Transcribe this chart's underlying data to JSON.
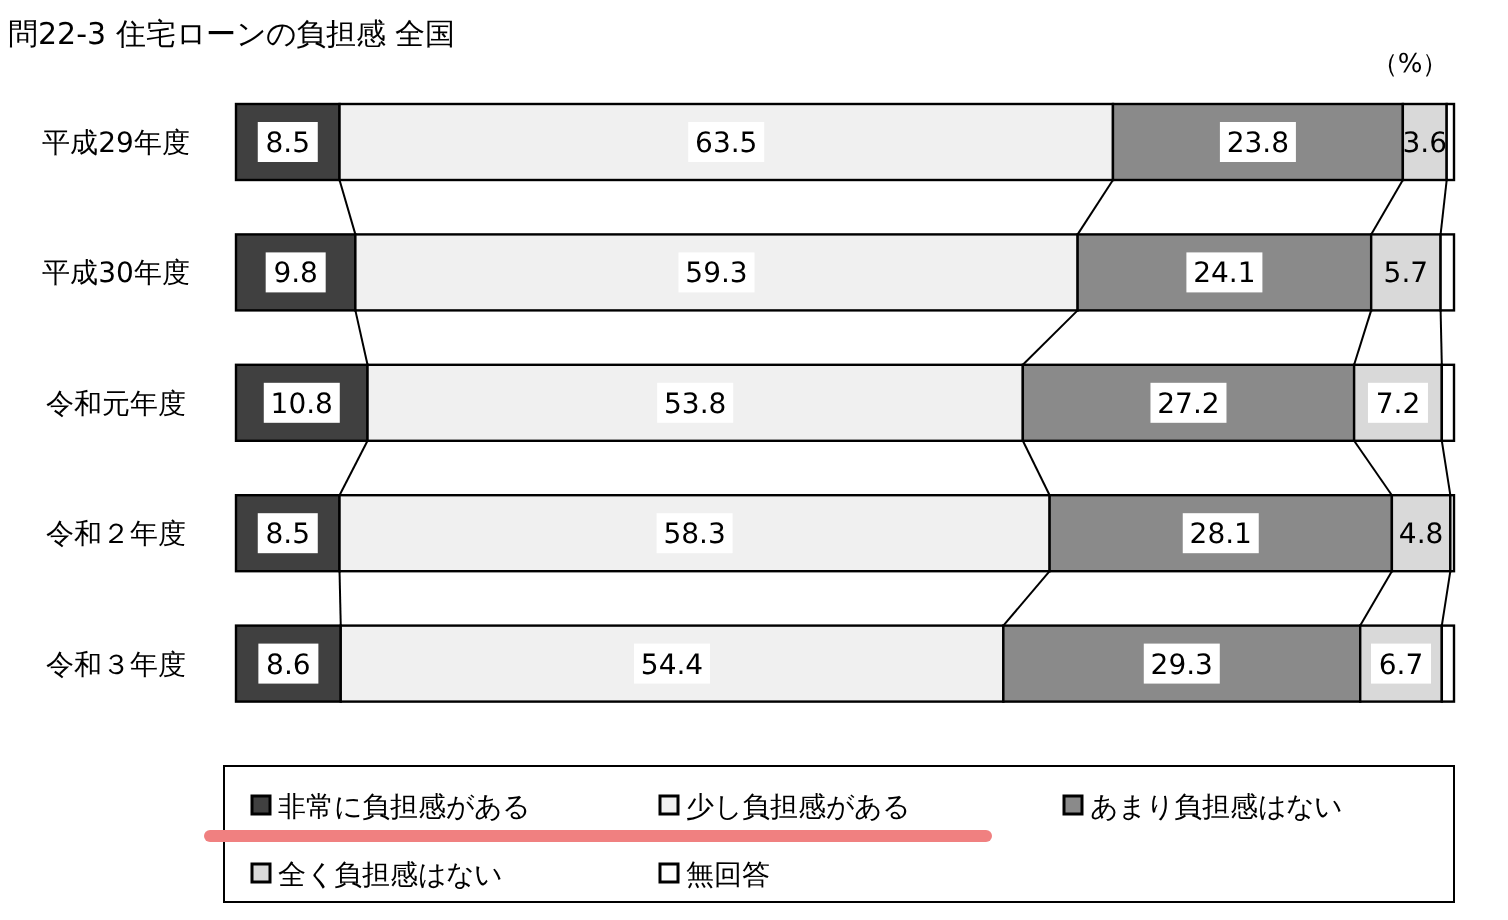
{
  "chart_data": {
    "type": "bar",
    "orientation": "horizontal",
    "stacked": true,
    "title": "問22-3 住宅ローンの負担感 全国",
    "annotations": [
      "（%）"
    ],
    "categories": [
      "平成29年度",
      "平成30年度",
      "令和元年度",
      "令和２年度",
      "令和３年度"
    ],
    "legend": "bottom",
    "series": [
      {
        "name": "非常に負担感がある",
        "color": "#404040",
        "values": [
          8.5,
          9.8,
          10.8,
          8.5,
          8.6
        ],
        "value_labels": [
          "8.5",
          "9.8",
          "10.8",
          "8.5",
          "8.6"
        ]
      },
      {
        "name": "少し負担感がある",
        "color": "#f0f0f0",
        "values": [
          63.5,
          59.3,
          53.8,
          58.3,
          54.4
        ],
        "value_labels": [
          "63.5",
          "59.3",
          "53.8",
          "58.3",
          "54.4"
        ]
      },
      {
        "name": "あまり負担感はない",
        "color": "#8a8a8a",
        "values": [
          23.8,
          24.1,
          27.2,
          28.1,
          29.3
        ],
        "value_labels": [
          "23.8",
          "24.1",
          "27.2",
          "28.1",
          "29.3"
        ]
      },
      {
        "name": "全く負担感はない",
        "color": "#d9d9d9",
        "values": [
          3.6,
          5.7,
          7.2,
          4.8,
          6.7
        ],
        "value_labels": [
          "3.6",
          "5.7",
          "7.2",
          "4.8",
          "6.7"
        ]
      },
      {
        "name": "無回答",
        "color": "#ffffff",
        "values": [
          0.6,
          1.1,
          1.0,
          0.3,
          1.0
        ],
        "value_labels": [
          null,
          null,
          null,
          null,
          null
        ]
      }
    ]
  }
}
